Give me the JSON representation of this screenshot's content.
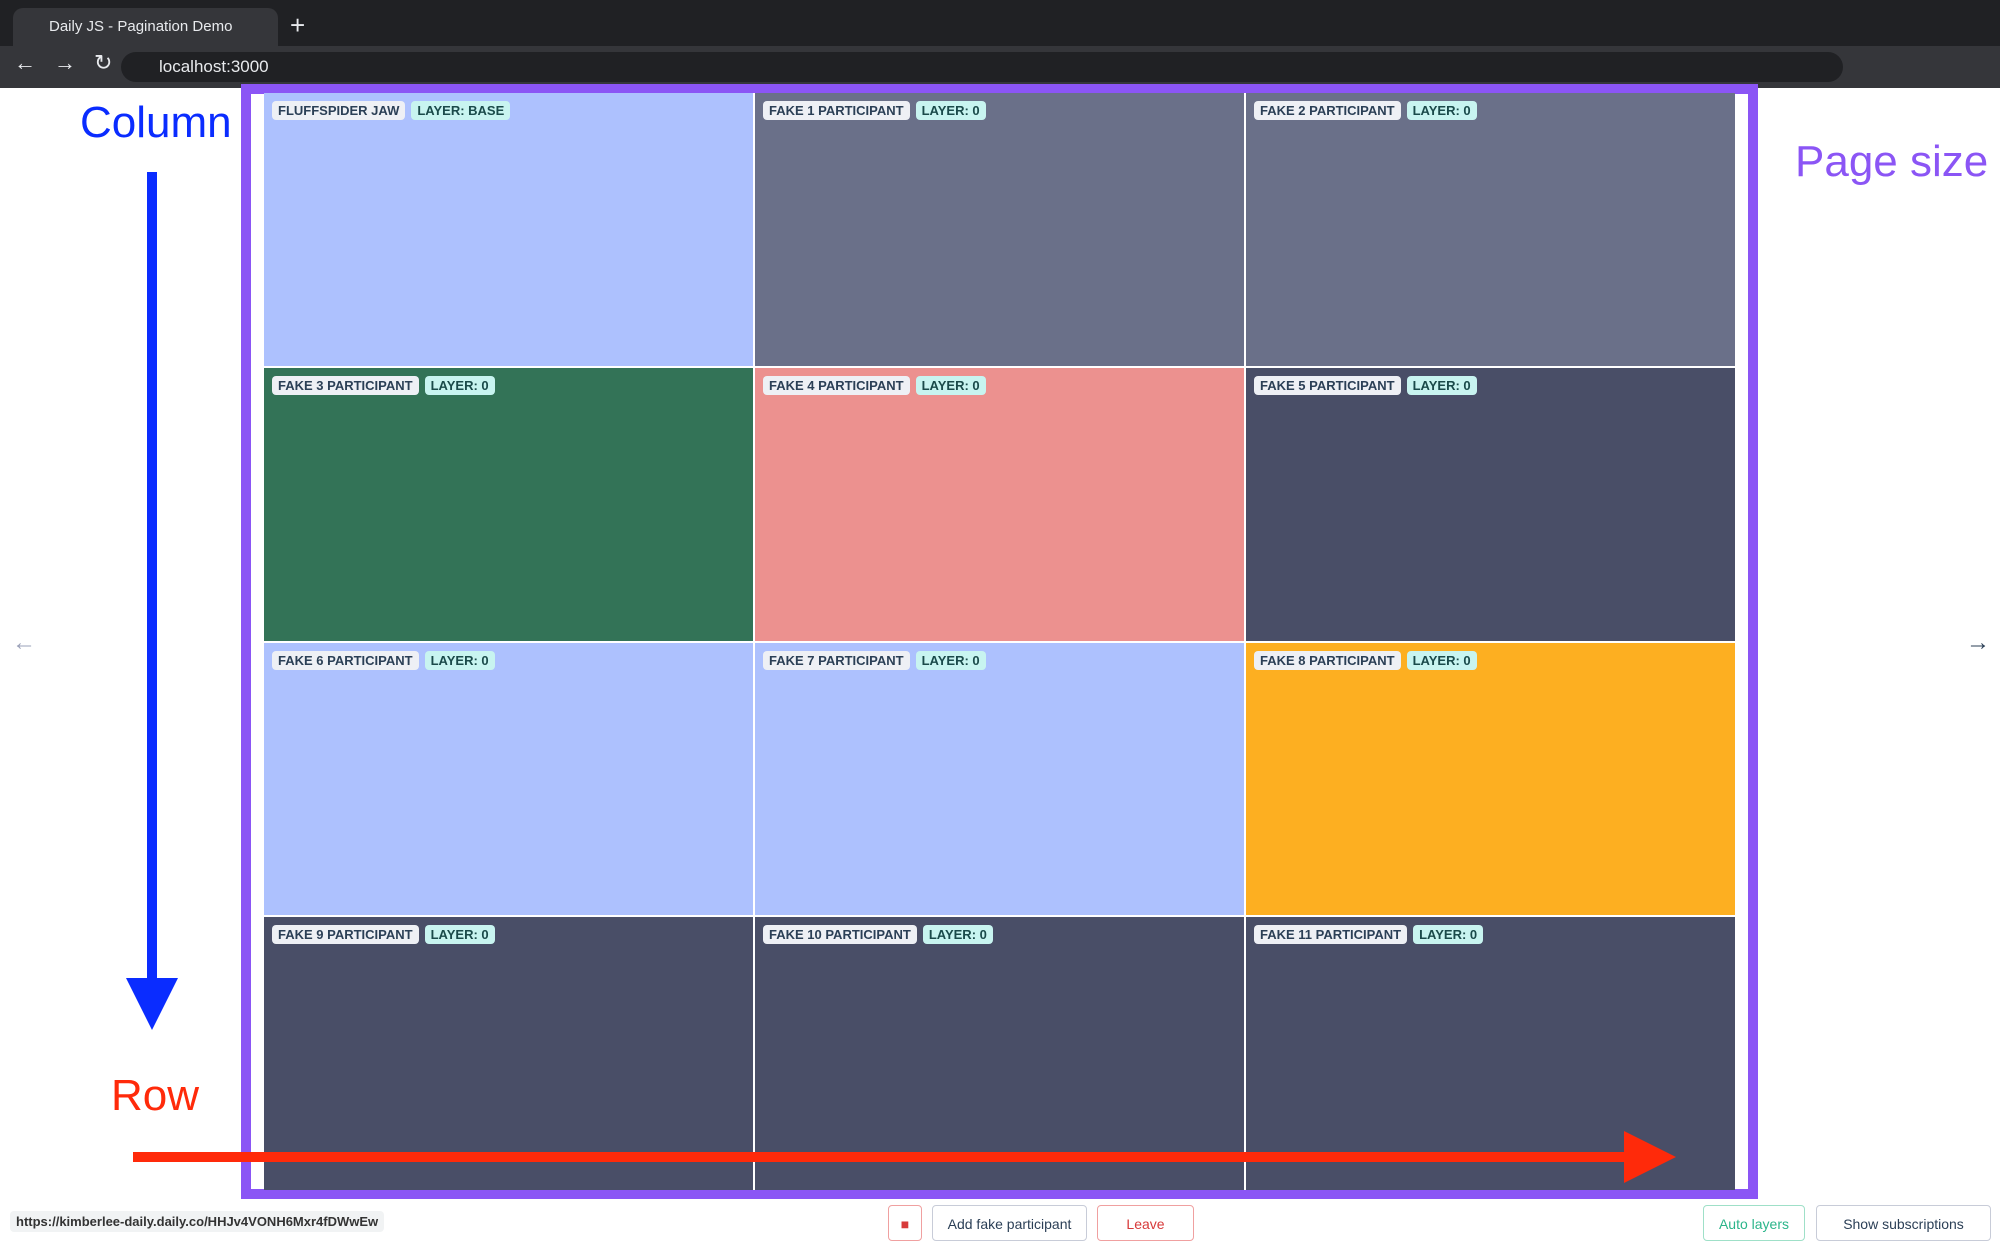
{
  "browser": {
    "tab_title": "Daily JS - Pagination Demo",
    "address": "localhost:3000"
  },
  "annotations": {
    "column": "Column",
    "row": "Row",
    "page_size": "Page size"
  },
  "tiles": [
    {
      "name": "FLUFFSPIDER JAW",
      "layer": "LAYER: BASE",
      "color": "#adc1fe"
    },
    {
      "name": "FAKE 1 PARTICIPANT",
      "layer": "LAYER: 0",
      "color": "#6a7089"
    },
    {
      "name": "FAKE 2 PARTICIPANT",
      "layer": "LAYER: 0",
      "color": "#6a7089"
    },
    {
      "name": "FAKE 3 PARTICIPANT",
      "layer": "LAYER: 0",
      "color": "#337357"
    },
    {
      "name": "FAKE 4 PARTICIPANT",
      "layer": "LAYER: 0",
      "color": "#ec918f"
    },
    {
      "name": "FAKE 5 PARTICIPANT",
      "layer": "LAYER: 0",
      "color": "#494e67"
    },
    {
      "name": "FAKE 6 PARTICIPANT",
      "layer": "LAYER: 0",
      "color": "#adc1fe"
    },
    {
      "name": "FAKE 7 PARTICIPANT",
      "layer": "LAYER: 0",
      "color": "#adc1fe"
    },
    {
      "name": "FAKE 8 PARTICIPANT",
      "layer": "LAYER: 0",
      "color": "#fdaf21"
    },
    {
      "name": "FAKE 9 PARTICIPANT",
      "layer": "LAYER: 0",
      "color": "#494e67"
    },
    {
      "name": "FAKE 10 PARTICIPANT",
      "layer": "LAYER: 0",
      "color": "#494e67"
    },
    {
      "name": "FAKE 11 PARTICIPANT",
      "layer": "LAYER: 0",
      "color": "#494e67"
    }
  ],
  "status_url": "https://kimberlee-daily.daily.co/HHJv4VONH6Mxr4fDWwEw",
  "toolbar": {
    "add": "Add fake participant",
    "leave": "Leave",
    "auto_layers": "Auto layers",
    "subscriptions": "Show subscriptions"
  }
}
